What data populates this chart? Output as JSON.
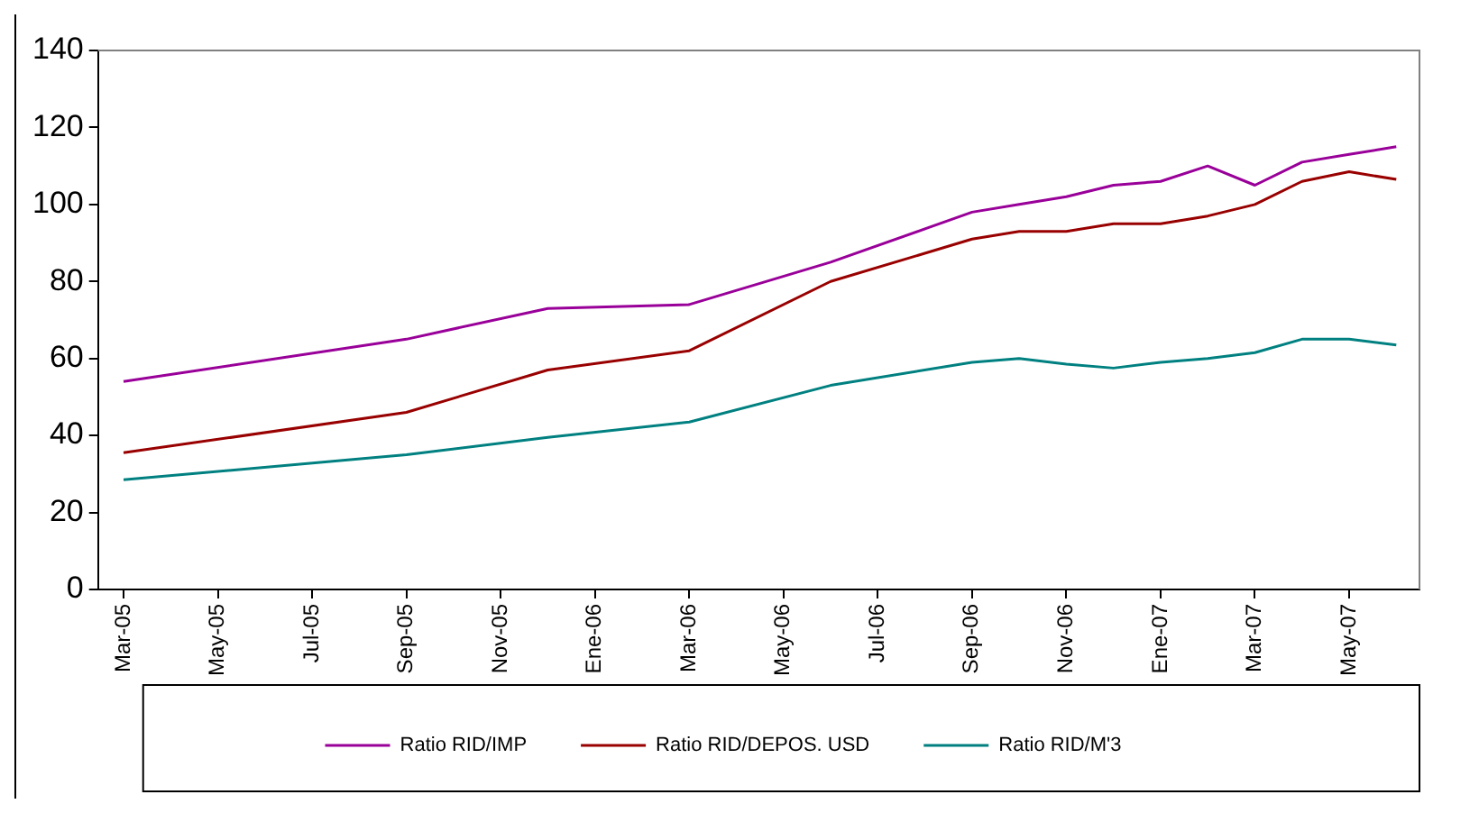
{
  "chart_data": {
    "type": "line",
    "x": [
      "2005-03",
      "2005-09",
      "2005-12",
      "2006-03",
      "2006-06",
      "2006-09",
      "2006-10",
      "2006-11",
      "2006-12",
      "2007-01",
      "2007-02",
      "2007-03",
      "2007-04",
      "2007-05",
      "2007-06"
    ],
    "series": [
      {
        "name": "Ratio RID/IMP",
        "color": "#990099",
        "values": [
          54,
          65,
          73,
          74,
          85,
          98,
          100,
          102,
          105,
          106,
          110,
          105,
          111,
          113,
          115
        ]
      },
      {
        "name": "Ratio RID/DEPOS. USD",
        "color": "#990000",
        "values": [
          35.5,
          46,
          57,
          62,
          80,
          91,
          93,
          93,
          95,
          95,
          97,
          100,
          106,
          108.5,
          106.5
        ]
      },
      {
        "name": "Ratio RID/M'3",
        "color": "#008080",
        "values": [
          28.5,
          35,
          39.5,
          43.5,
          53,
          59,
          60,
          58.5,
          57.5,
          59,
          60,
          61.5,
          65,
          65,
          63.5
        ]
      }
    ],
    "xlim": [
      "2005-02-15",
      "2007-06-16"
    ],
    "xticks": [
      {
        "value": "2005-03",
        "label": "Mar-05"
      },
      {
        "value": "2005-05",
        "label": "May-05"
      },
      {
        "value": "2005-07",
        "label": "Jul-05"
      },
      {
        "value": "2005-09",
        "label": "Sep-05"
      },
      {
        "value": "2005-11",
        "label": "Nov-05"
      },
      {
        "value": "2006-01",
        "label": "Ene-06"
      },
      {
        "value": "2006-03",
        "label": "Mar-06"
      },
      {
        "value": "2006-05",
        "label": "May-06"
      },
      {
        "value": "2006-07",
        "label": "Jul-06"
      },
      {
        "value": "2006-09",
        "label": "Sep-06"
      },
      {
        "value": "2006-11",
        "label": "Nov-06"
      },
      {
        "value": "2007-01",
        "label": "Ene-07"
      },
      {
        "value": "2007-03",
        "label": "Mar-07"
      },
      {
        "value": "2007-05",
        "label": "May-07"
      }
    ],
    "ylim": [
      0,
      140
    ],
    "yticks": [
      0,
      20,
      40,
      60,
      80,
      100,
      120,
      140
    ],
    "grid": false,
    "legend": "bottom",
    "marker": "none",
    "line_style": "solid"
  }
}
